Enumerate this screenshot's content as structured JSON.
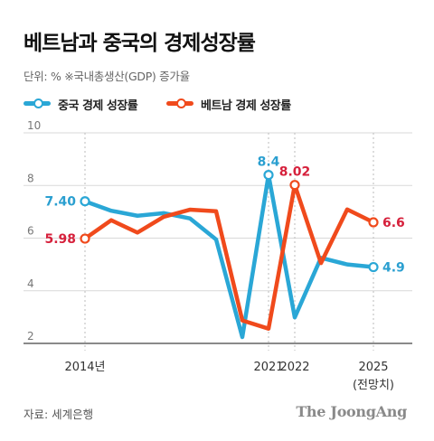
{
  "title": "베트남과 중국의 경제성장률",
  "unit_note": "단위: %   ※국내총생산(GDP) 증가율",
  "source": "자료: 세계은행",
  "brand": "The JoongAng",
  "colors": {
    "china": "#2aa7d6",
    "vietnam": "#f04a1c",
    "china_label": "#2a9fd0",
    "vietnam_label": "#d6213c"
  },
  "chart_data": {
    "type": "line",
    "x": [
      2014,
      2015,
      2016,
      2017,
      2018,
      2019,
      2020,
      2021,
      2022,
      2023,
      2024,
      2025
    ],
    "series": [
      {
        "name": "중국 경제 성장률",
        "color": "#2aa7d6",
        "values": [
          7.4,
          7.04,
          6.85,
          6.95,
          6.75,
          5.95,
          2.24,
          8.4,
          2.99,
          5.25,
          5.0,
          4.9
        ]
      },
      {
        "name": "베트남 경제 성장률",
        "color": "#f04a1c",
        "values": [
          5.98,
          6.68,
          6.21,
          6.81,
          7.08,
          7.02,
          2.87,
          2.56,
          8.02,
          5.05,
          7.09,
          6.6
        ]
      }
    ],
    "yticks": [
      2,
      4,
      6,
      8,
      10
    ],
    "ylim": [
      2,
      10
    ],
    "xtick_labels": [
      {
        "x": 2014,
        "label": "2014년"
      },
      {
        "x": 2021,
        "label": "2021"
      },
      {
        "x": 2022,
        "label": "2022"
      },
      {
        "x": 2025,
        "label": "2025",
        "sub": "(전망치)"
      }
    ],
    "annotations": [
      {
        "series": 0,
        "x": 2014,
        "text": "7.40"
      },
      {
        "series": 1,
        "x": 2014,
        "text": "5.98"
      },
      {
        "series": 0,
        "x": 2021,
        "text": "8.4"
      },
      {
        "series": 1,
        "x": 2022,
        "text": "8.02"
      },
      {
        "series": 1,
        "x": 2025,
        "text": "6.6"
      },
      {
        "series": 0,
        "x": 2025,
        "text": "4.9"
      }
    ],
    "grid": true
  }
}
